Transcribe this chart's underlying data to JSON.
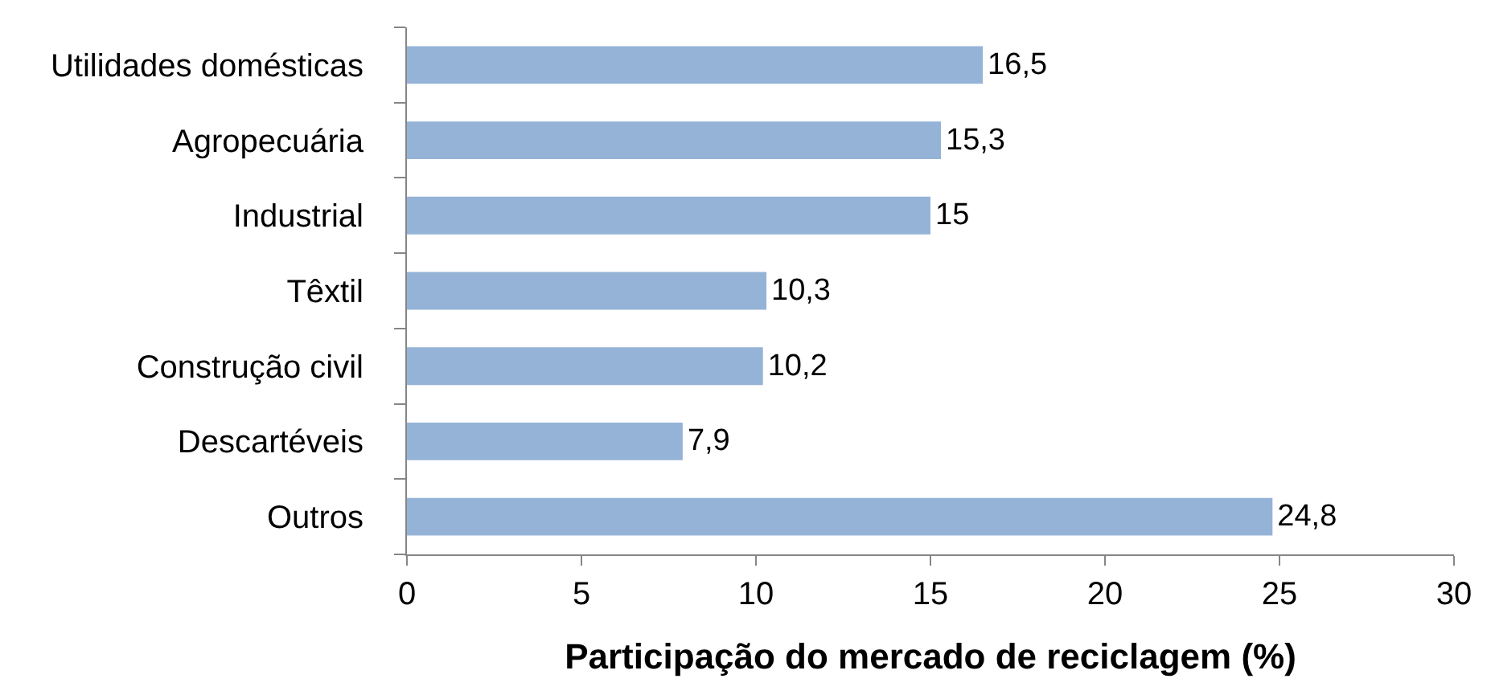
{
  "chart_data": {
    "type": "bar",
    "orientation": "horizontal",
    "xlabel": "Participação do mercado de reciclagem (%)",
    "categories": [
      "Utilidades domésticas",
      "Agropecuária",
      "Industrial",
      "Têxtil",
      "Construção civil",
      "Descartéveis",
      "Outros"
    ],
    "values": [
      16.5,
      15.3,
      15,
      10.3,
      10.2,
      7.9,
      24.8
    ],
    "value_labels": [
      "16,5",
      "15,3",
      "15",
      "10,3",
      "10,2",
      "7,9",
      "24,8"
    ],
    "color": "#95b3d7",
    "xlim": [
      0,
      30
    ],
    "xticks": [
      0,
      5,
      10,
      15,
      20,
      25,
      30
    ]
  }
}
